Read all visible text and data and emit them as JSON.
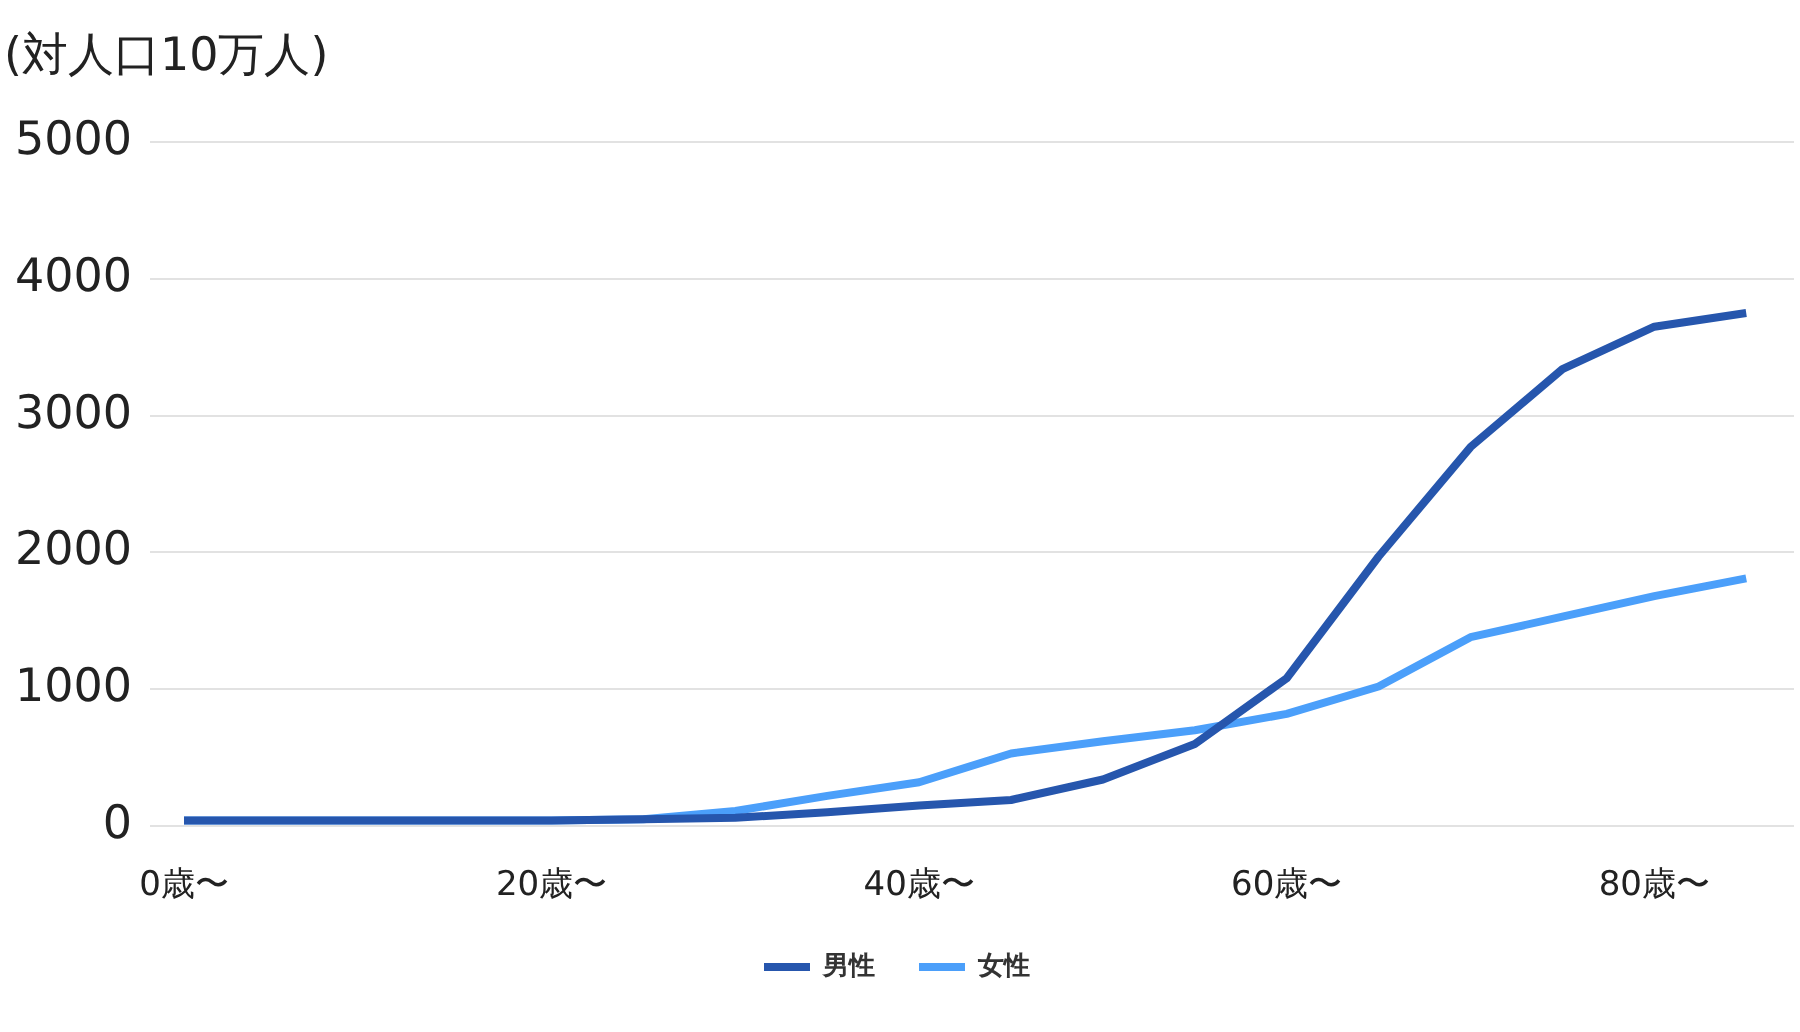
{
  "chart_data": {
    "type": "line",
    "ylabel": "(対人口10万人)",
    "categories": [
      "0歳〜",
      null,
      null,
      null,
      "20歳〜",
      null,
      null,
      null,
      "40歳〜",
      null,
      null,
      null,
      "60歳〜",
      null,
      null,
      null,
      "80歳〜",
      null
    ],
    "ylim": [
      0,
      5000
    ],
    "yticks": [
      0,
      1000,
      2000,
      3000,
      4000,
      5000
    ],
    "grid": "y",
    "legend": "bottom",
    "series": [
      {
        "name": "男性",
        "color": "#2656ad",
        "values": [
          40,
          40,
          40,
          40,
          40,
          50,
          60,
          100,
          150,
          190,
          340,
          600,
          1080,
          1970,
          2770,
          3340,
          3650,
          3750
        ]
      },
      {
        "name": "女性",
        "color": "#4b9ffa",
        "values": [
          40,
          40,
          40,
          40,
          40,
          50,
          110,
          220,
          320,
          530,
          620,
          700,
          820,
          1020,
          1380,
          1530,
          1680,
          1810
        ]
      }
    ]
  }
}
